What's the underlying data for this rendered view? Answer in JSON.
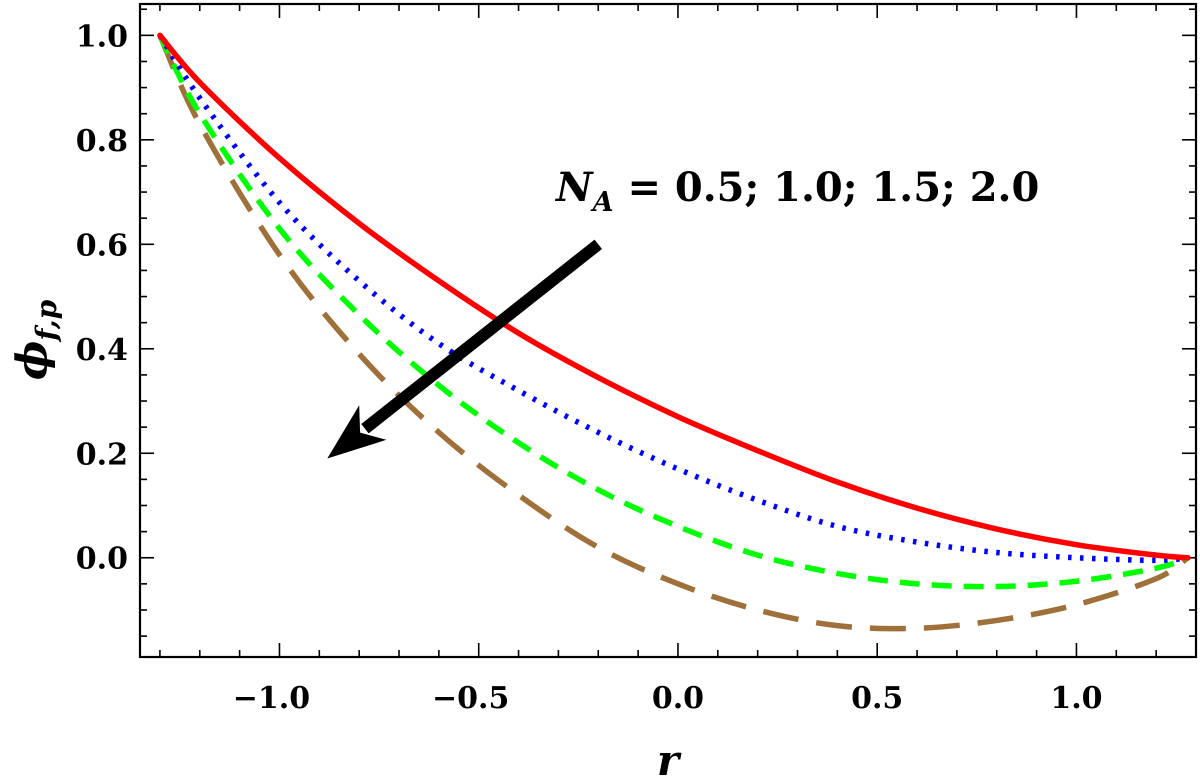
{
  "chart_data": {
    "type": "line",
    "xlabel": "r",
    "ylabel": {
      "base": "ϕ",
      "sub": "f,p"
    },
    "xlim": [
      -1.35,
      1.3
    ],
    "ylim": [
      -0.19,
      1.06
    ],
    "x_ticks": [
      -1.0,
      -0.5,
      0.0,
      0.5,
      1.0
    ],
    "x_tick_labels": [
      "−1.0",
      "−0.5",
      "0.0",
      "0.5",
      "1.0"
    ],
    "y_ticks": [
      0.0,
      0.2,
      0.4,
      0.6,
      0.8,
      1.0
    ],
    "y_tick_labels": [
      "0.0",
      "0.2",
      "0.4",
      "0.6",
      "0.8",
      "1.0"
    ],
    "annotation": {
      "var": "N",
      "sub": "A",
      "text": " = 0.5; 1.0; 1.5; 2.0"
    },
    "arrow": {
      "from": [
        -0.2,
        0.6
      ],
      "to": [
        -0.88,
        0.19
      ]
    },
    "series": [
      {
        "color": "#ff0000",
        "style": "solid",
        "x": [
          -1.3,
          -1.2,
          -1.0,
          -0.8,
          -0.6,
          -0.4,
          -0.2,
          0.0,
          0.2,
          0.4,
          0.6,
          0.8,
          1.0,
          1.2,
          1.28
        ],
        "y": [
          1.0,
          0.91,
          0.765,
          0.64,
          0.53,
          0.43,
          0.345,
          0.27,
          0.205,
          0.145,
          0.095,
          0.055,
          0.025,
          0.005,
          0.0
        ]
      },
      {
        "color": "#0000ff",
        "style": "dotted",
        "x": [
          -1.3,
          -1.2,
          -1.0,
          -0.8,
          -0.6,
          -0.4,
          -0.2,
          0.0,
          0.2,
          0.4,
          0.6,
          0.8,
          1.0,
          1.2,
          1.28
        ],
        "y": [
          1.0,
          0.88,
          0.68,
          0.53,
          0.41,
          0.32,
          0.24,
          0.17,
          0.11,
          0.06,
          0.03,
          0.01,
          0.0,
          -0.005,
          0.0
        ]
      },
      {
        "color": "#00ff00",
        "style": "dashed",
        "x": [
          -1.3,
          -1.2,
          -1.0,
          -0.8,
          -0.6,
          -0.4,
          -0.2,
          0.0,
          0.2,
          0.4,
          0.6,
          0.8,
          1.0,
          1.2,
          1.28
        ],
        "y": [
          1.0,
          0.85,
          0.63,
          0.465,
          0.33,
          0.22,
          0.13,
          0.06,
          0.005,
          -0.03,
          -0.05,
          -0.055,
          -0.045,
          -0.02,
          0.0
        ]
      },
      {
        "color": "#a0703a",
        "style": "longdash",
        "x": [
          -1.3,
          -1.2,
          -1.0,
          -0.8,
          -0.6,
          -0.4,
          -0.2,
          0.0,
          0.2,
          0.4,
          0.6,
          0.8,
          1.0,
          1.2,
          1.28
        ],
        "y": [
          1.0,
          0.83,
          0.58,
          0.39,
          0.24,
          0.12,
          0.02,
          -0.05,
          -0.1,
          -0.13,
          -0.135,
          -0.12,
          -0.09,
          -0.04,
          0.0
        ]
      }
    ]
  }
}
